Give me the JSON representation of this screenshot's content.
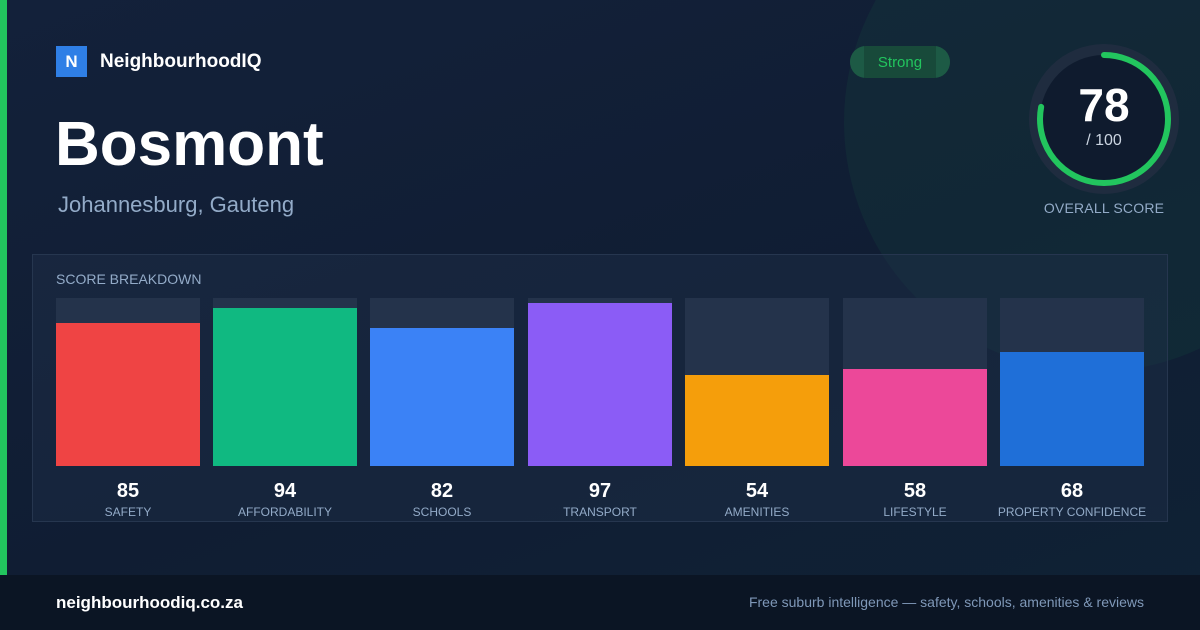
{
  "brand": {
    "logo_letter": "N",
    "name": "NeighbourhoodIQ"
  },
  "suburb": {
    "name": "Bosmont",
    "location": "Johannesburg, Gauteng"
  },
  "status": {
    "label": "Strong"
  },
  "overall": {
    "score": "78",
    "max": "/ 100",
    "label": "OVERALL SCORE",
    "fraction": 0.78
  },
  "breakdown": {
    "title": "SCORE BREAKDOWN",
    "max": 100,
    "items": [
      {
        "label": "SAFETY",
        "value": 85,
        "color": "#ef4444"
      },
      {
        "label": "AFFORDABILITY",
        "value": 94,
        "color": "#10b981"
      },
      {
        "label": "SCHOOLS",
        "value": 82,
        "color": "#3b82f6"
      },
      {
        "label": "TRANSPORT",
        "value": 97,
        "color": "#8b5cf6"
      },
      {
        "label": "AMENITIES",
        "value": 54,
        "color": "#f59e0b"
      },
      {
        "label": "LIFESTYLE",
        "value": 58,
        "color": "#ec4899"
      },
      {
        "label": "PROPERTY CONFIDENCE",
        "value": 68,
        "color": "#1f6fd8"
      }
    ]
  },
  "colors": {
    "accent": "#22c55e",
    "background": "#13213a",
    "ring_track": "#1f2c3f",
    "ring_inner": "#0f1b2e"
  },
  "footer": {
    "domain": "neighbourhoodiq.co.za",
    "tagline": "Free suburb intelligence — safety, schools, amenities & reviews"
  }
}
